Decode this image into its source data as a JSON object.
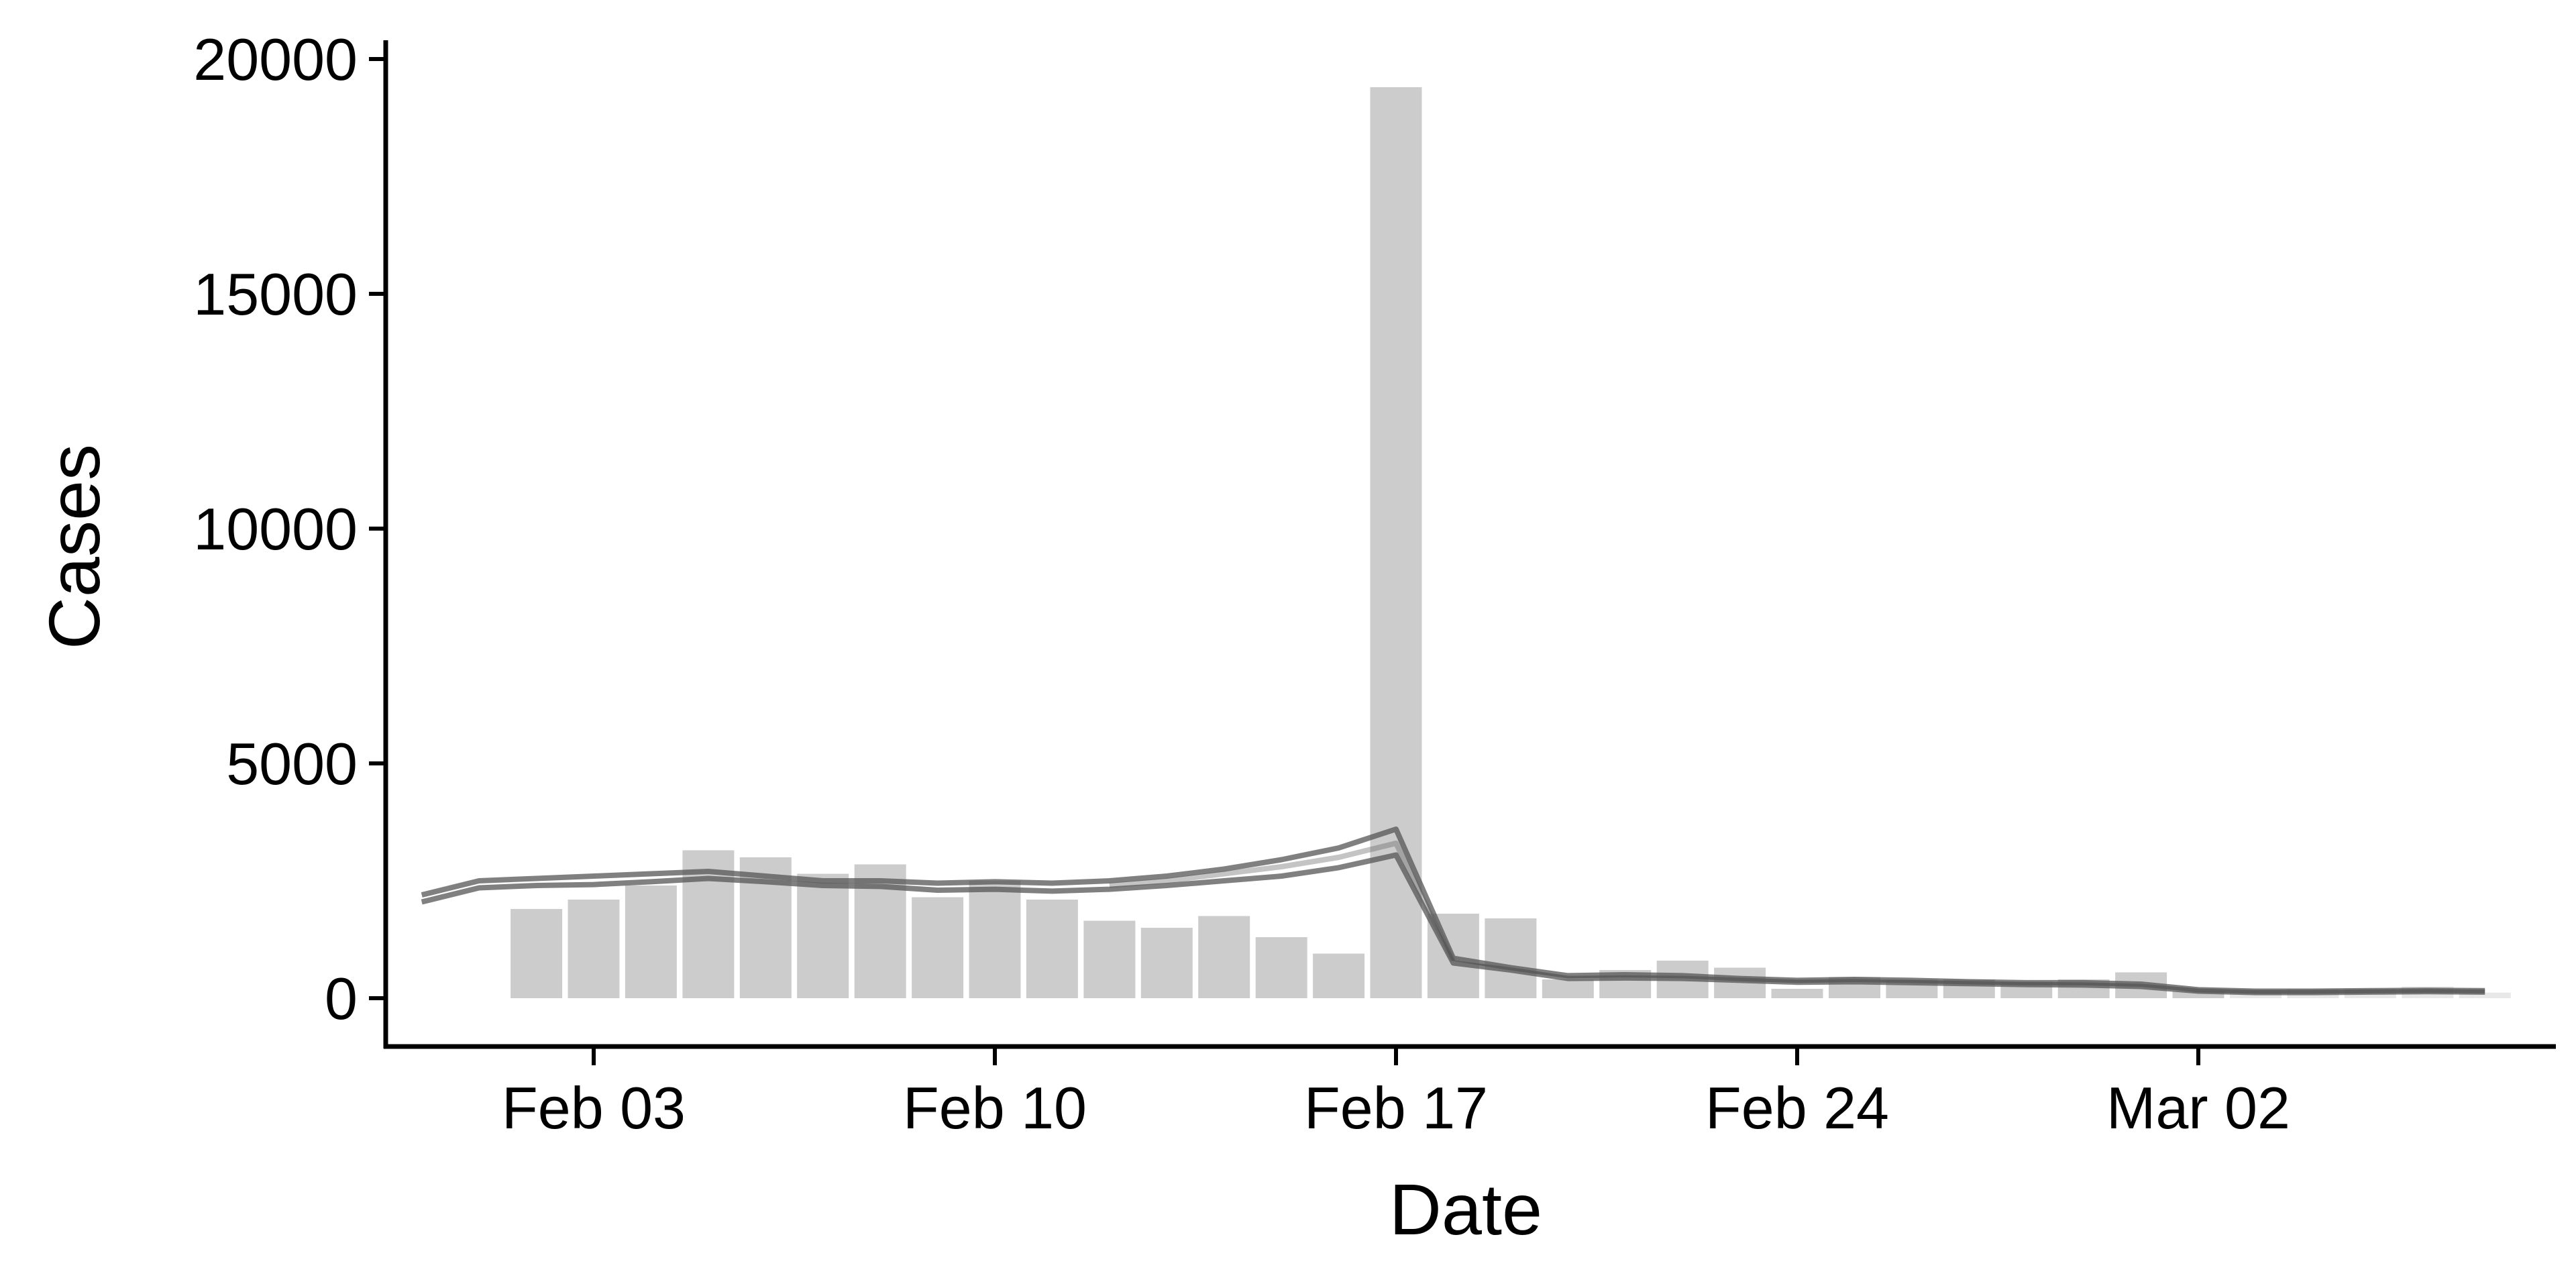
{
  "chart_data": {
    "type": "bar",
    "title": "",
    "xlabel": "Date",
    "ylabel": "Cases",
    "x_ticks": [
      {
        "date": "2020-02-03",
        "label": "Feb 03"
      },
      {
        "date": "2020-02-10",
        "label": "Feb 10"
      },
      {
        "date": "2020-02-17",
        "label": "Feb 17"
      },
      {
        "date": "2020-02-24",
        "label": "Feb 24"
      },
      {
        "date": "2020-03-02",
        "label": "Mar 02"
      }
    ],
    "y_ticks": [
      0,
      5000,
      10000,
      15000,
      20000
    ],
    "ylim": [
      -1000,
      20400
    ],
    "xlim": [
      "2019-01-29",
      "2020-03-13"
    ],
    "grid": false,
    "colors": {
      "bars": "#cccccc",
      "bars_light": "#e8e8e8",
      "lines": "#555555",
      "axis": "#000000"
    },
    "bars": [
      {
        "date": "2020-02-02",
        "value": 1900
      },
      {
        "date": "2020-02-03",
        "value": 2100
      },
      {
        "date": "2020-02-04",
        "value": 2400
      },
      {
        "date": "2020-02-05",
        "value": 3150
      },
      {
        "date": "2020-02-06",
        "value": 3000
      },
      {
        "date": "2020-02-07",
        "value": 2650
      },
      {
        "date": "2020-02-08",
        "value": 2850
      },
      {
        "date": "2020-02-09",
        "value": 2150
      },
      {
        "date": "2020-02-10",
        "value": 2500
      },
      {
        "date": "2020-02-11",
        "value": 2100
      },
      {
        "date": "2020-02-12",
        "value": 1650
      },
      {
        "date": "2020-02-13",
        "value": 1500
      },
      {
        "date": "2020-02-14",
        "value": 1750
      },
      {
        "date": "2020-02-15",
        "value": 1300
      },
      {
        "date": "2020-02-16",
        "value": 950
      },
      {
        "date": "2020-02-17",
        "value": 19400
      },
      {
        "date": "2020-02-18",
        "value": 1800
      },
      {
        "date": "2020-02-19",
        "value": 1700
      },
      {
        "date": "2020-02-20",
        "value": 400
      },
      {
        "date": "2020-02-21",
        "value": 600
      },
      {
        "date": "2020-02-22",
        "value": 800
      },
      {
        "date": "2020-02-23",
        "value": 650
      },
      {
        "date": "2020-02-24",
        "value": 200
      },
      {
        "date": "2020-02-25",
        "value": 450
      },
      {
        "date": "2020-02-26",
        "value": 400
      },
      {
        "date": "2020-02-27",
        "value": 400
      },
      {
        "date": "2020-02-28",
        "value": 350
      },
      {
        "date": "2020-02-29",
        "value": 400
      },
      {
        "date": "2020-03-01",
        "value": 550
      },
      {
        "date": "2020-03-02",
        "value": 150
      },
      {
        "date": "2020-03-03",
        "value": 150
      },
      {
        "date": "2020-03-04",
        "value": 200
      },
      {
        "date": "2020-03-05",
        "value": 200
      },
      {
        "date": "2020-03-06",
        "value": 250
      },
      {
        "date": "2020-03-07",
        "value": 120
      }
    ],
    "series": [
      {
        "opacity": 0.75,
        "points": [
          {
            "date": "2020-01-31",
            "value": 2200
          },
          {
            "date": "2020-02-01",
            "value": 2500
          },
          {
            "date": "2020-02-02",
            "value": 2550
          },
          {
            "date": "2020-02-03",
            "value": 2600
          },
          {
            "date": "2020-02-04",
            "value": 2650
          },
          {
            "date": "2020-02-05",
            "value": 2700
          },
          {
            "date": "2020-02-06",
            "value": 2600
          },
          {
            "date": "2020-02-07",
            "value": 2500
          },
          {
            "date": "2020-02-08",
            "value": 2500
          },
          {
            "date": "2020-02-09",
            "value": 2450
          },
          {
            "date": "2020-02-10",
            "value": 2480
          },
          {
            "date": "2020-02-11",
            "value": 2450
          },
          {
            "date": "2020-02-12",
            "value": 2500
          },
          {
            "date": "2020-02-13",
            "value": 2600
          },
          {
            "date": "2020-02-14",
            "value": 2750
          },
          {
            "date": "2020-02-15",
            "value": 2950
          },
          {
            "date": "2020-02-16",
            "value": 3200
          },
          {
            "date": "2020-02-17",
            "value": 3600
          },
          {
            "date": "2020-02-18",
            "value": 850
          },
          {
            "date": "2020-02-19",
            "value": 650
          },
          {
            "date": "2020-02-20",
            "value": 480
          },
          {
            "date": "2020-02-21",
            "value": 500
          },
          {
            "date": "2020-02-22",
            "value": 480
          },
          {
            "date": "2020-02-23",
            "value": 420
          },
          {
            "date": "2020-02-24",
            "value": 380
          },
          {
            "date": "2020-02-25",
            "value": 400
          },
          {
            "date": "2020-02-26",
            "value": 380
          },
          {
            "date": "2020-02-27",
            "value": 350
          },
          {
            "date": "2020-02-28",
            "value": 330
          },
          {
            "date": "2020-02-29",
            "value": 330
          },
          {
            "date": "2020-03-01",
            "value": 300
          },
          {
            "date": "2020-03-02",
            "value": 180
          },
          {
            "date": "2020-03-03",
            "value": 150
          },
          {
            "date": "2020-03-04",
            "value": 150
          },
          {
            "date": "2020-03-05",
            "value": 160
          },
          {
            "date": "2020-03-06",
            "value": 170
          },
          {
            "date": "2020-03-07",
            "value": 160
          }
        ]
      },
      {
        "opacity": 0.75,
        "points": [
          {
            "date": "2020-01-31",
            "value": 2050
          },
          {
            "date": "2020-02-01",
            "value": 2350
          },
          {
            "date": "2020-02-02",
            "value": 2400
          },
          {
            "date": "2020-02-03",
            "value": 2420
          },
          {
            "date": "2020-02-04",
            "value": 2480
          },
          {
            "date": "2020-02-05",
            "value": 2550
          },
          {
            "date": "2020-02-06",
            "value": 2480
          },
          {
            "date": "2020-02-07",
            "value": 2400
          },
          {
            "date": "2020-02-08",
            "value": 2380
          },
          {
            "date": "2020-02-09",
            "value": 2300
          },
          {
            "date": "2020-02-10",
            "value": 2320
          },
          {
            "date": "2020-02-11",
            "value": 2280
          },
          {
            "date": "2020-02-12",
            "value": 2320
          },
          {
            "date": "2020-02-13",
            "value": 2400
          },
          {
            "date": "2020-02-14",
            "value": 2500
          },
          {
            "date": "2020-02-15",
            "value": 2600
          },
          {
            "date": "2020-02-16",
            "value": 2780
          },
          {
            "date": "2020-02-17",
            "value": 3050
          },
          {
            "date": "2020-02-18",
            "value": 750
          },
          {
            "date": "2020-02-19",
            "value": 600
          },
          {
            "date": "2020-02-20",
            "value": 420
          },
          {
            "date": "2020-02-21",
            "value": 430
          },
          {
            "date": "2020-02-22",
            "value": 420
          },
          {
            "date": "2020-02-23",
            "value": 380
          },
          {
            "date": "2020-02-24",
            "value": 340
          },
          {
            "date": "2020-02-25",
            "value": 350
          },
          {
            "date": "2020-02-26",
            "value": 330
          },
          {
            "date": "2020-02-27",
            "value": 310
          },
          {
            "date": "2020-02-28",
            "value": 290
          },
          {
            "date": "2020-02-29",
            "value": 280
          },
          {
            "date": "2020-03-01",
            "value": 250
          },
          {
            "date": "2020-03-02",
            "value": 150
          },
          {
            "date": "2020-03-03",
            "value": 120
          },
          {
            "date": "2020-03-04",
            "value": 120
          },
          {
            "date": "2020-03-05",
            "value": 130
          },
          {
            "date": "2020-03-06",
            "value": 140
          },
          {
            "date": "2020-03-07",
            "value": 130
          }
        ]
      },
      {
        "opacity": 0.35,
        "points": [
          {
            "date": "2020-02-12",
            "value": 2400
          },
          {
            "date": "2020-02-13",
            "value": 2500
          },
          {
            "date": "2020-02-14",
            "value": 2650
          },
          {
            "date": "2020-02-15",
            "value": 2800
          },
          {
            "date": "2020-02-16",
            "value": 3000
          },
          {
            "date": "2020-02-17",
            "value": 3300
          },
          {
            "date": "2020-02-18",
            "value": 800
          }
        ]
      }
    ]
  }
}
